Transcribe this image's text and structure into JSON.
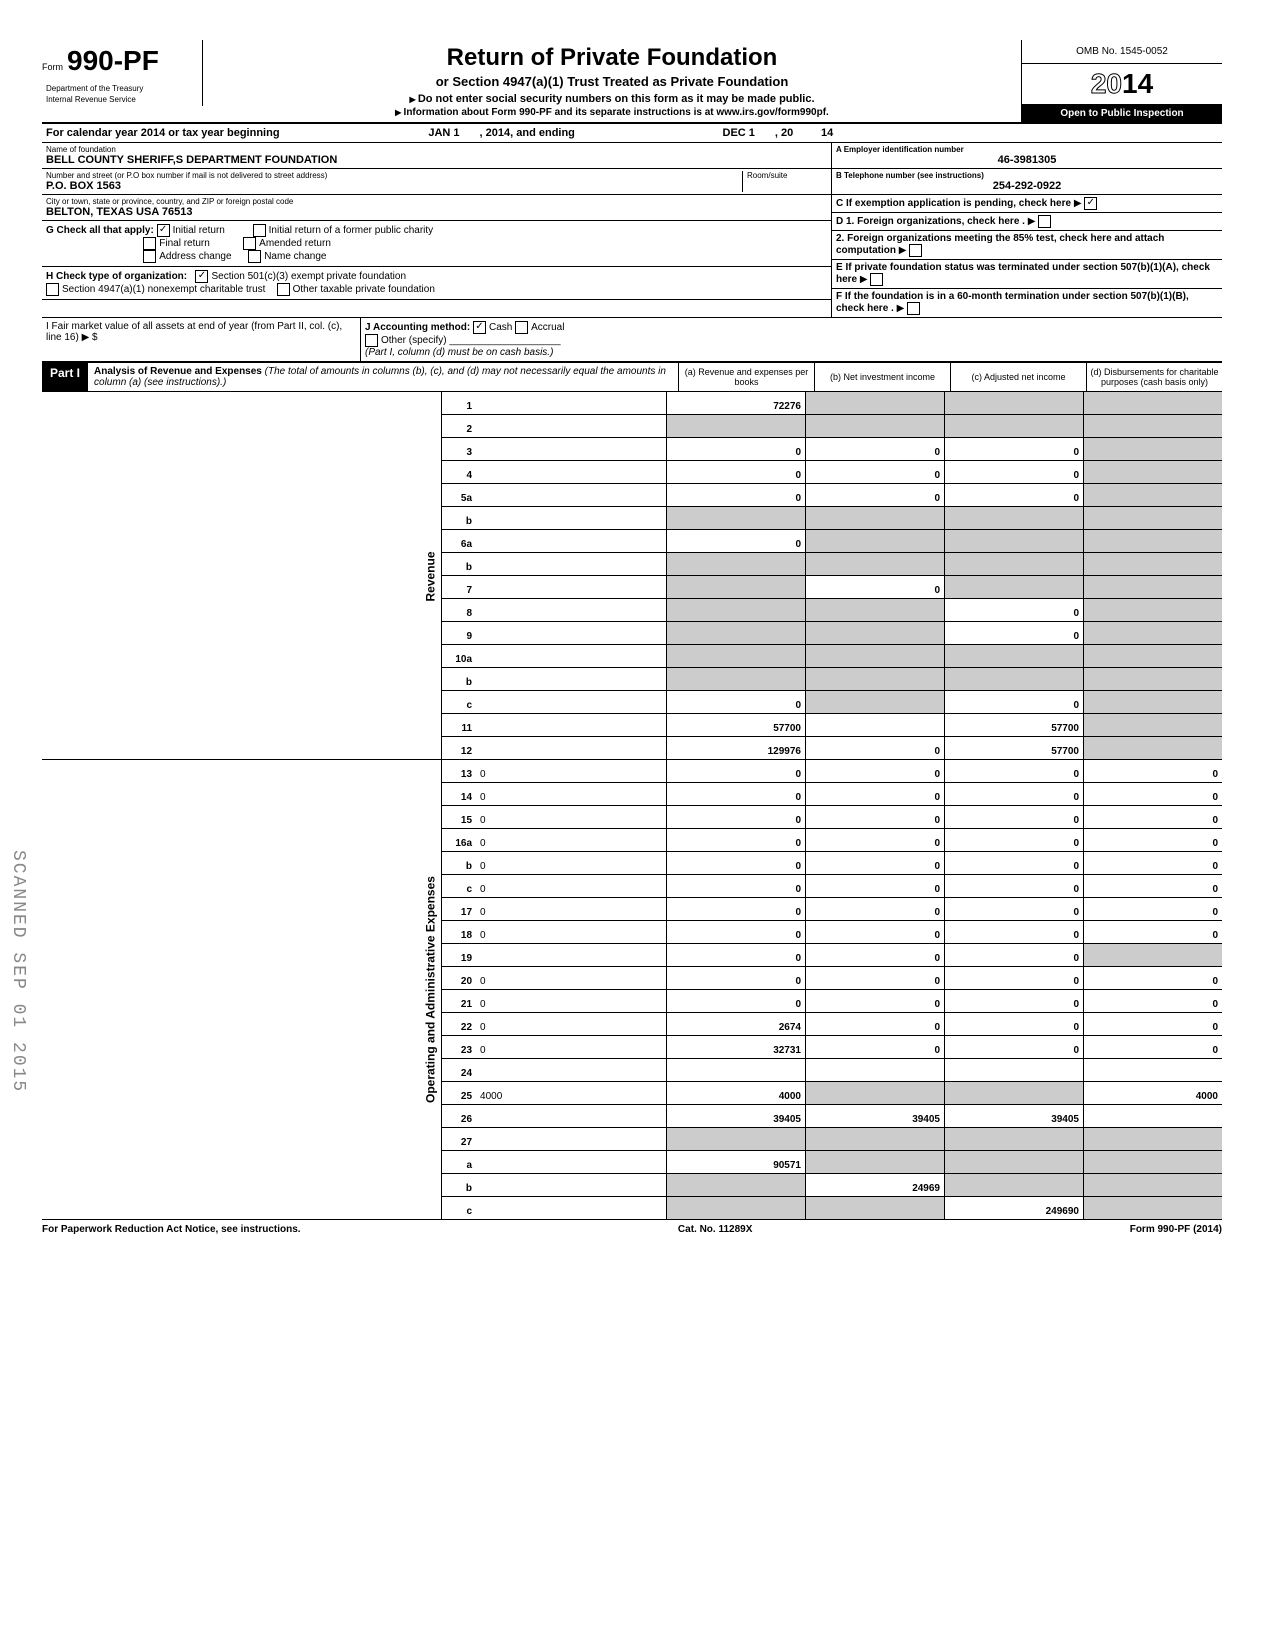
{
  "form": {
    "prefix": "Form",
    "number": "990-PF",
    "dept1": "Department of the Treasury",
    "dept2": "Internal Revenue Service",
    "title": "Return of Private Foundation",
    "subtitle1": "or Section 4947(a)(1) Trust Treated as Private Foundation",
    "subtitle2": "Do not enter social security numbers on this form as it may be made public.",
    "subtitle3": "Information about Form 990-PF and its separate instructions is at www.irs.gov/form990pf.",
    "omb": "OMB No. 1545-0052",
    "year_outline": "20",
    "year_bold": "14",
    "inspection": "Open to Public Inspection"
  },
  "calendar": {
    "text1": "For calendar year 2014 or tax year beginning",
    "begin": "JAN 1",
    "text2": ", 2014, and ending",
    "end": "DEC 1",
    "text3": ", 20",
    "endyear": "14"
  },
  "identity": {
    "name_label": "Name of foundation",
    "name": "BELL COUNTY SHERIFF,S DEPARTMENT FOUNDATION",
    "street_label": "Number and street (or P.O box number if mail is not delivered to street address)",
    "room_label": "Room/suite",
    "street": "P.O. BOX 1563",
    "city_label": "City or town, state or province, country, and ZIP or foreign postal code",
    "city": "BELTON, TEXAS USA 76513",
    "A_label": "A  Employer identification number",
    "A_value": "46-3981305",
    "B_label": "B  Telephone number (see instructions)",
    "B_value": "254-292-0922",
    "C_label": "C  If exemption application is pending, check here",
    "C_checked": true
  },
  "G": {
    "label": "G  Check all that apply:",
    "initial_return": "Initial return",
    "initial_return_checked": true,
    "final_return": "Final return",
    "address_change": "Address change",
    "initial_former": "Initial return of a former public charity",
    "amended": "Amended return",
    "name_change": "Name change"
  },
  "H": {
    "label": "H  Check type of organization:",
    "opt1": "Section 501(c)(3) exempt private foundation",
    "opt1_checked": true,
    "opt2": "Section 4947(a)(1) nonexempt charitable trust",
    "opt3": "Other taxable private foundation"
  },
  "I": {
    "label": "I   Fair market value of all assets at end of year (from Part II, col. (c), line 16) ▶ $",
    "J_label": "J   Accounting method:",
    "cash": "Cash",
    "cash_checked": true,
    "accrual": "Accrual",
    "other": "Other (specify)",
    "note": "(Part I, column (d) must be on cash basis.)"
  },
  "D": {
    "D1": "D  1. Foreign organizations, check here .",
    "D2": "2. Foreign organizations meeting the 85% test, check here and attach computation",
    "E": "E  If private foundation status was terminated under section 507(b)(1)(A), check here",
    "F": "F  If the foundation is in a 60-month termination under section 507(b)(1)(B), check here ."
  },
  "part1": {
    "label": "Part I",
    "title": "Analysis of Revenue and Expenses",
    "note": "(The total of amounts in columns (b), (c), and (d) may not necessarily equal the amounts in column (a) (see instructions).)",
    "col_a": "(a) Revenue and expenses per books",
    "col_b": "(b) Net investment income",
    "col_c": "(c) Adjusted net income",
    "col_d": "(d) Disbursements for charitable purposes (cash basis only)"
  },
  "side_labels": {
    "revenue": "Revenue",
    "expenses": "Operating and Administrative Expenses"
  },
  "rows": [
    {
      "n": "1",
      "d": "",
      "a": "72276",
      "b": "",
      "c": "",
      "shade_b": true,
      "shade_c": true,
      "shade_d": true
    },
    {
      "n": "2",
      "d": "",
      "a": "",
      "b": "",
      "c": "",
      "shade_a": true,
      "shade_b": true,
      "shade_c": true,
      "shade_d": true
    },
    {
      "n": "3",
      "d": "",
      "a": "0",
      "b": "0",
      "c": "0",
      "shade_d": true
    },
    {
      "n": "4",
      "d": "",
      "a": "0",
      "b": "0",
      "c": "0",
      "shade_d": true
    },
    {
      "n": "5a",
      "d": "",
      "a": "0",
      "b": "0",
      "c": "0",
      "shade_d": true
    },
    {
      "n": "b",
      "d": "",
      "a": "",
      "b": "",
      "c": "",
      "shade_a": true,
      "shade_b": true,
      "shade_c": true,
      "shade_d": true
    },
    {
      "n": "6a",
      "d": "",
      "a": "0",
      "b": "",
      "c": "",
      "shade_b": true,
      "shade_c": true,
      "shade_d": true
    },
    {
      "n": "b",
      "d": "",
      "a": "",
      "b": "",
      "c": "",
      "shade_a": true,
      "shade_b": true,
      "shade_c": true,
      "shade_d": true
    },
    {
      "n": "7",
      "d": "",
      "a": "",
      "b": "0",
      "c": "",
      "shade_a": true,
      "shade_c": true,
      "shade_d": true
    },
    {
      "n": "8",
      "d": "",
      "a": "",
      "b": "",
      "c": "0",
      "shade_a": true,
      "shade_b": true,
      "shade_d": true
    },
    {
      "n": "9",
      "d": "",
      "a": "",
      "b": "",
      "c": "0",
      "shade_a": true,
      "shade_b": true,
      "shade_d": true
    },
    {
      "n": "10a",
      "d": "",
      "a": "",
      "b": "",
      "c": "",
      "shade_a": true,
      "shade_b": true,
      "shade_c": true,
      "shade_d": true
    },
    {
      "n": "b",
      "d": "",
      "a": "",
      "b": "",
      "c": "",
      "shade_a": true,
      "shade_b": true,
      "shade_c": true,
      "shade_d": true
    },
    {
      "n": "c",
      "d": "",
      "a": "0",
      "b": "",
      "c": "0",
      "shade_b": true,
      "shade_d": true
    },
    {
      "n": "11",
      "d": "",
      "a": "57700",
      "b": "",
      "c": "57700",
      "shade_d": true
    },
    {
      "n": "12",
      "d": "",
      "a": "129976",
      "b": "0",
      "c": "57700",
      "bold": true,
      "shade_d": true
    },
    {
      "n": "13",
      "d": "0",
      "a": "0",
      "b": "0",
      "c": "0"
    },
    {
      "n": "14",
      "d": "0",
      "a": "0",
      "b": "0",
      "c": "0"
    },
    {
      "n": "15",
      "d": "0",
      "a": "0",
      "b": "0",
      "c": "0"
    },
    {
      "n": "16a",
      "d": "0",
      "a": "0",
      "b": "0",
      "c": "0"
    },
    {
      "n": "b",
      "d": "0",
      "a": "0",
      "b": "0",
      "c": "0"
    },
    {
      "n": "c",
      "d": "0",
      "a": "0",
      "b": "0",
      "c": "0"
    },
    {
      "n": "17",
      "d": "0",
      "a": "0",
      "b": "0",
      "c": "0"
    },
    {
      "n": "18",
      "d": "0",
      "a": "0",
      "b": "0",
      "c": "0"
    },
    {
      "n": "19",
      "d": "",
      "a": "0",
      "b": "0",
      "c": "0",
      "shade_d": true
    },
    {
      "n": "20",
      "d": "0",
      "a": "0",
      "b": "0",
      "c": "0"
    },
    {
      "n": "21",
      "d": "0",
      "a": "0",
      "b": "0",
      "c": "0"
    },
    {
      "n": "22",
      "d": "0",
      "a": "2674",
      "b": "0",
      "c": "0"
    },
    {
      "n": "23",
      "d": "0",
      "a": "32731",
      "b": "0",
      "c": "0"
    },
    {
      "n": "24",
      "d": "",
      "a": "",
      "b": "",
      "c": "",
      "bold": true
    },
    {
      "n": "25",
      "d": "4000",
      "a": "4000",
      "b": "",
      "c": "",
      "shade_b": true,
      "shade_c": true
    },
    {
      "n": "26",
      "d": "",
      "a": "39405",
      "b": "39405",
      "c": "39405",
      "bold": true
    },
    {
      "n": "27",
      "d": "",
      "a": "",
      "b": "",
      "c": "",
      "shade_a": true,
      "shade_b": true,
      "shade_c": true,
      "shade_d": true
    },
    {
      "n": "a",
      "d": "",
      "a": "90571",
      "b": "",
      "c": "",
      "bold": true,
      "shade_b": true,
      "shade_c": true,
      "shade_d": true
    },
    {
      "n": "b",
      "d": "",
      "a": "",
      "b": "24969",
      "c": "",
      "bold": true,
      "shade_a": true,
      "shade_c": true,
      "shade_d": true
    },
    {
      "n": "c",
      "d": "",
      "a": "",
      "b": "",
      "c": "249690",
      "bold": true,
      "shade_a": true,
      "shade_b": true,
      "shade_d": true
    }
  ],
  "footer": {
    "left": "For Paperwork Reduction Act Notice, see instructions.",
    "mid": "Cat. No. 11289X",
    "right": "Form 990-PF (2014)"
  },
  "stamp": "SCANNED SEP 01 2015"
}
